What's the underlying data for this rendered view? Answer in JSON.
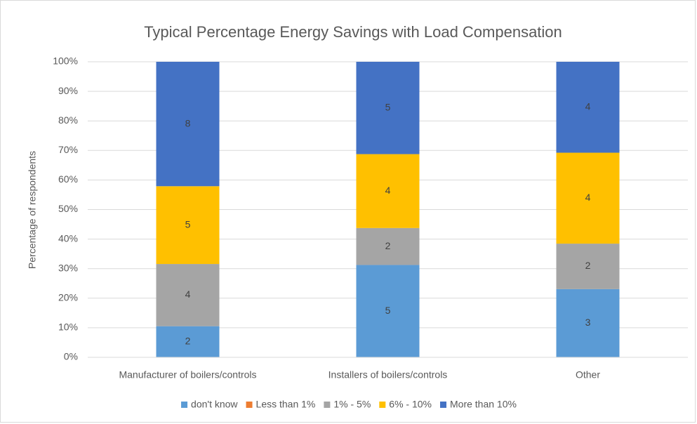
{
  "chart_data": {
    "type": "bar",
    "stacking": "percent",
    "title": "Typical Percentage Energy Savings with Load Compensation",
    "y_label": "Percentage of respondents",
    "categories": [
      "Manufacturer of boilers/controls",
      "Installers of boilers/controls",
      "Other"
    ],
    "series": [
      {
        "name": "don't know",
        "color": "#5b9bd5",
        "values": [
          2,
          5,
          3
        ]
      },
      {
        "name": "Less than 1%",
        "color": "#ed7d31",
        "values": [
          0,
          0,
          0
        ]
      },
      {
        "name": "1% - 5%",
        "color": "#a5a5a5",
        "values": [
          4,
          2,
          2
        ]
      },
      {
        "name": "6% - 10%",
        "color": "#ffc000",
        "values": [
          5,
          4,
          4
        ]
      },
      {
        "name": "More than 10%",
        "color": "#4472c4",
        "values": [
          8,
          5,
          4
        ]
      }
    ],
    "ylim": [
      0,
      100
    ],
    "yticks": [
      {
        "value": 0,
        "label": "0%"
      },
      {
        "value": 10,
        "label": "10%"
      },
      {
        "value": 20,
        "label": "20%"
      },
      {
        "value": 30,
        "label": "30%"
      },
      {
        "value": 40,
        "label": "40%"
      },
      {
        "value": 50,
        "label": "50%"
      },
      {
        "value": 60,
        "label": "60%"
      },
      {
        "value": 70,
        "label": "70%"
      },
      {
        "value": 80,
        "label": "80%"
      },
      {
        "value": 90,
        "label": "90%"
      },
      {
        "value": 100,
        "label": "100%"
      }
    ],
    "grid": true,
    "legend": "bottom"
  }
}
